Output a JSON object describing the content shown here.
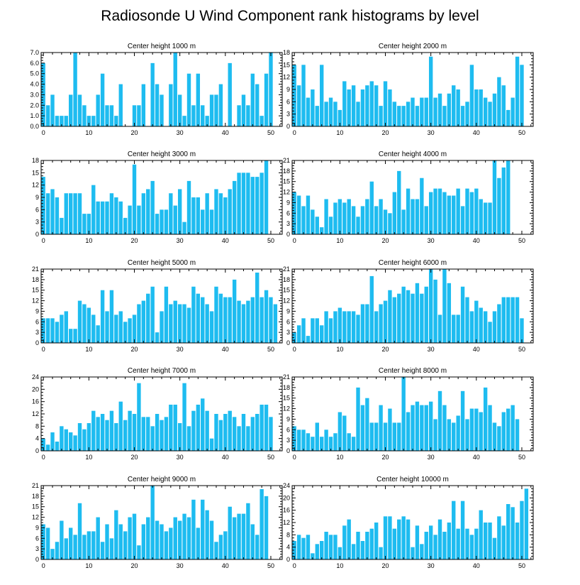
{
  "chart_data": {
    "title": "Radiosonde U Wind Component rank histograms by level",
    "bar_color": "#1ebcf0",
    "bins": 52,
    "x_major_ticks": [
      0,
      10,
      20,
      30,
      40,
      50
    ],
    "panels": [
      {
        "type": "bar",
        "title": "Center height 1000 m",
        "ylim": [
          0,
          7
        ],
        "yticks": [
          "0.0",
          "1.0",
          "2.0",
          "3.0",
          "4.0",
          "5.0",
          "6.0",
          "7.0"
        ],
        "values": [
          6,
          2,
          3,
          1,
          1,
          1,
          3,
          7,
          3,
          2,
          1,
          1,
          3,
          5,
          2,
          2,
          1,
          4,
          0,
          0,
          2,
          2,
          4,
          0,
          6,
          4,
          3,
          0,
          4,
          7,
          3,
          1,
          5,
          2,
          5,
          2,
          1,
          3,
          3,
          4,
          0,
          6,
          0,
          2,
          3,
          2,
          5,
          4,
          1,
          5,
          7,
          0
        ]
      },
      {
        "type": "bar",
        "title": "Center height 2000 m",
        "ylim": [
          0,
          18
        ],
        "yticks": [
          "0",
          "3",
          "6",
          "9",
          "12",
          "15",
          "18"
        ],
        "values": [
          15,
          10,
          15,
          7,
          9,
          5,
          15,
          6,
          7,
          6,
          4,
          11,
          9,
          10,
          6,
          9,
          10,
          11,
          10,
          5,
          11,
          9,
          6,
          5,
          5,
          6,
          7,
          5,
          7,
          7,
          17,
          7,
          8,
          5,
          8,
          10,
          9,
          5,
          6,
          15,
          9,
          9,
          7,
          6,
          8,
          12,
          10,
          4,
          7,
          17,
          15,
          0
        ]
      },
      {
        "type": "bar",
        "title": "Center height 3000 m",
        "ylim": [
          0,
          18
        ],
        "yticks": [
          "0",
          "3",
          "6",
          "9",
          "12",
          "15",
          "18"
        ],
        "values": [
          14,
          10,
          11,
          9,
          4,
          10,
          10,
          10,
          10,
          5,
          5,
          12,
          8,
          8,
          8,
          10,
          9,
          8,
          4,
          7,
          17,
          7,
          10,
          11,
          13,
          5,
          6,
          6,
          10,
          7,
          11,
          3,
          13,
          9,
          9,
          6,
          10,
          6,
          11,
          10,
          9,
          11,
          13,
          15,
          15,
          15,
          14,
          14,
          15,
          18,
          0,
          0
        ]
      },
      {
        "type": "bar",
        "title": "Center height 4000 m",
        "ylim": [
          0,
          21
        ],
        "yticks": [
          "0",
          "3",
          "6",
          "9",
          "12",
          "15",
          "18",
          "21"
        ],
        "values": [
          12,
          11,
          8,
          11,
          7,
          5,
          2,
          10,
          5,
          9,
          10,
          9,
          10,
          8,
          5,
          8,
          10,
          15,
          8,
          10,
          7,
          6,
          12,
          18,
          7,
          13,
          10,
          10,
          16,
          8,
          12,
          13,
          13,
          12,
          11,
          11,
          13,
          8,
          13,
          12,
          13,
          10,
          9,
          9,
          21,
          16,
          19,
          21,
          0,
          0,
          0,
          0
        ]
      },
      {
        "type": "bar",
        "title": "Center height 5000 m",
        "ylim": [
          0,
          21
        ],
        "yticks": [
          "0",
          "3",
          "6",
          "9",
          "12",
          "15",
          "18",
          "21"
        ],
        "values": [
          7,
          7,
          7,
          6,
          8,
          9,
          4,
          4,
          12,
          11,
          10,
          8,
          5,
          15,
          9,
          15,
          8,
          9,
          6,
          7,
          8,
          11,
          12,
          14,
          16,
          3,
          9,
          16,
          11,
          12,
          11,
          11,
          10,
          16,
          14,
          13,
          11,
          9,
          16,
          14,
          13,
          13,
          18,
          12,
          11,
          12,
          13,
          20,
          13,
          15,
          13,
          11
        ]
      },
      {
        "type": "bar",
        "title": "Center height 6000 m",
        "ylim": [
          0,
          21
        ],
        "yticks": [
          "0",
          "3",
          "6",
          "9",
          "12",
          "15",
          "18",
          "21"
        ],
        "values": [
          3,
          5,
          7,
          2,
          7,
          7,
          5,
          9,
          7,
          9,
          10,
          9,
          9,
          9,
          8,
          11,
          11,
          19,
          9,
          11,
          12,
          15,
          13,
          14,
          16,
          15,
          14,
          17,
          14,
          16,
          21,
          18,
          8,
          21,
          17,
          8,
          8,
          16,
          13,
          9,
          12,
          10,
          9,
          6,
          9,
          11,
          13,
          13,
          13,
          13,
          7,
          0
        ]
      },
      {
        "type": "bar",
        "title": "Center height 7000 m",
        "ylim": [
          0,
          24
        ],
        "yticks": [
          "0",
          "4",
          "8",
          "12",
          "16",
          "20",
          "24"
        ],
        "values": [
          4,
          2,
          6,
          3,
          8,
          7,
          6,
          5,
          9,
          7,
          9,
          13,
          11,
          12,
          10,
          13,
          9,
          16,
          10,
          13,
          12,
          22,
          11,
          11,
          8,
          12,
          10,
          11,
          15,
          15,
          9,
          22,
          8,
          13,
          15,
          17,
          13,
          4,
          12,
          10,
          12,
          13,
          11,
          8,
          12,
          8,
          11,
          12,
          15,
          15,
          11,
          0
        ]
      },
      {
        "type": "bar",
        "title": "Center height 8000 m",
        "ylim": [
          0,
          21
        ],
        "yticks": [
          "0",
          "3",
          "6",
          "9",
          "12",
          "15",
          "18",
          "21"
        ],
        "values": [
          7,
          6,
          6,
          5,
          4,
          8,
          4,
          6,
          4,
          5,
          11,
          10,
          5,
          4,
          18,
          13,
          15,
          8,
          8,
          13,
          8,
          12,
          8,
          8,
          21,
          11,
          13,
          14,
          13,
          13,
          14,
          9,
          17,
          13,
          9,
          8,
          10,
          17,
          9,
          12,
          12,
          11,
          18,
          13,
          8,
          7,
          11,
          12,
          13,
          9,
          0,
          0
        ]
      },
      {
        "type": "bar",
        "title": "Center height 9000 m",
        "ylim": [
          0,
          21
        ],
        "yticks": [
          "0",
          "3",
          "6",
          "9",
          "12",
          "15",
          "18",
          "21"
        ],
        "values": [
          10,
          9,
          3,
          5,
          11,
          6,
          9,
          7,
          16,
          7,
          8,
          8,
          12,
          5,
          10,
          6,
          14,
          10,
          8,
          12,
          13,
          4,
          10,
          12,
          21,
          11,
          10,
          8,
          9,
          12,
          11,
          13,
          12,
          17,
          9,
          17,
          14,
          11,
          5,
          7,
          8,
          15,
          12,
          13,
          13,
          16,
          10,
          7,
          20,
          18,
          0,
          0
        ]
      },
      {
        "type": "bar",
        "title": "Center height 10000 m",
        "ylim": [
          0,
          24
        ],
        "yticks": [
          "0",
          "4",
          "8",
          "12",
          "16",
          "20",
          "24"
        ],
        "values": [
          6,
          8,
          7,
          8,
          2,
          5,
          6,
          9,
          8,
          8,
          4,
          11,
          13,
          5,
          9,
          6,
          9,
          10,
          12,
          4,
          14,
          14,
          10,
          13,
          14,
          13,
          4,
          11,
          5,
          9,
          11,
          8,
          13,
          9,
          12,
          19,
          10,
          19,
          10,
          8,
          10,
          16,
          12,
          12,
          7,
          14,
          11,
          18,
          17,
          12,
          19,
          23
        ]
      }
    ]
  }
}
